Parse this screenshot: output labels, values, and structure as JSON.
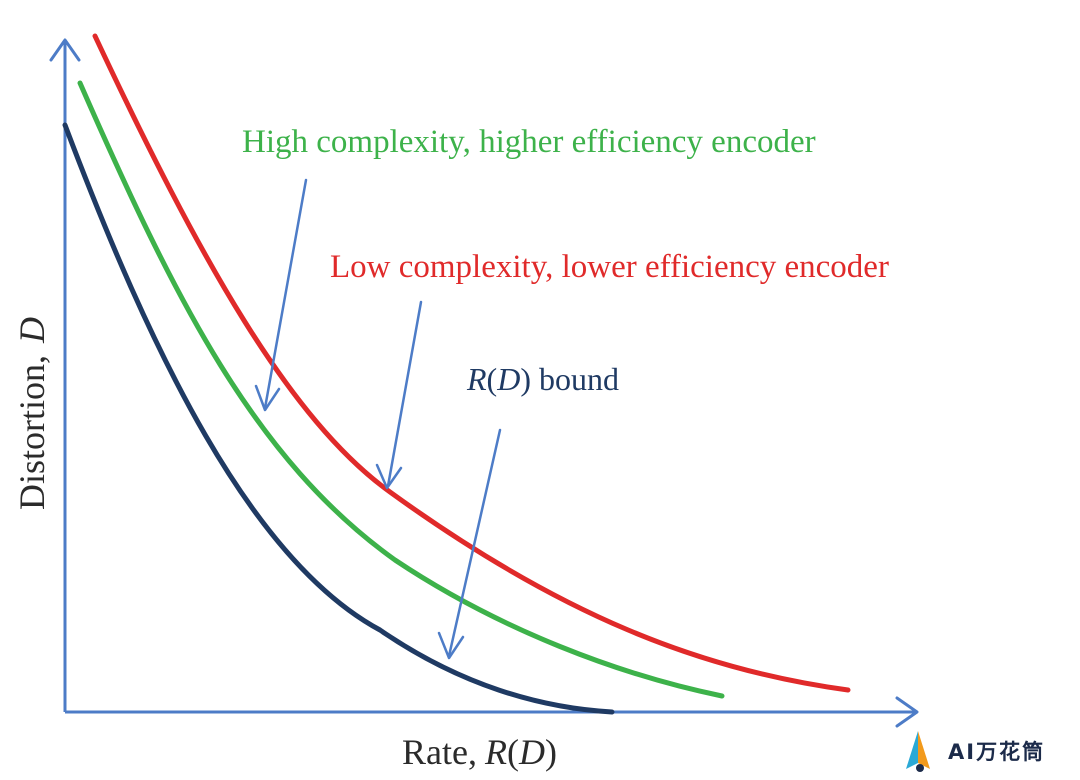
{
  "diagram": {
    "axes": {
      "y_label": "Distortion,",
      "y_label_var": "D",
      "x_label": "Rate,",
      "x_label_var_main": "R",
      "x_label_var_open": "(",
      "x_label_var_arg": "D",
      "x_label_var_close": ")",
      "color": "#4d7cc7"
    },
    "curves": [
      {
        "id": "low",
        "label": "Low complexity, lower efficiency encoder",
        "color": "#e02a2a"
      },
      {
        "id": "high",
        "label": "High complexity, higher efficiency encoder",
        "color": "#3db24a"
      },
      {
        "id": "bound",
        "label_var": "R",
        "label_open": "(",
        "label_arg": "D",
        "label_close": ")",
        "label_rest": " bound",
        "color": "#1f3a63"
      }
    ]
  },
  "watermark": {
    "text": "AI万花筒"
  }
}
